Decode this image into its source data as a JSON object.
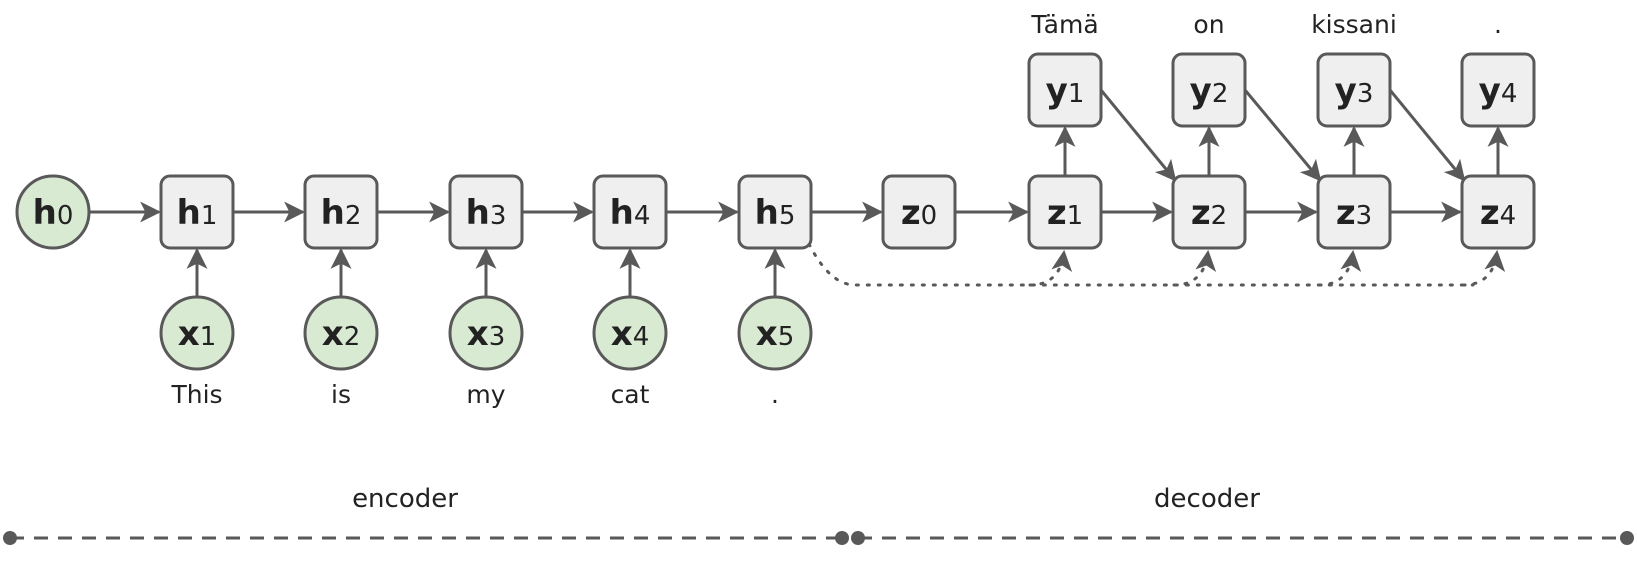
{
  "colors": {
    "stroke": "#595959",
    "box_fill": "#efefef",
    "circle_fill": "#d9ead3",
    "text": "#222222"
  },
  "encoder": {
    "initial_state": {
      "symbol": "h",
      "index": "0"
    },
    "states": [
      {
        "symbol": "h",
        "index": "1"
      },
      {
        "symbol": "h",
        "index": "2"
      },
      {
        "symbol": "h",
        "index": "3"
      },
      {
        "symbol": "h",
        "index": "4"
      },
      {
        "symbol": "h",
        "index": "5"
      }
    ],
    "inputs": [
      {
        "symbol": "x",
        "index": "1",
        "word": "This"
      },
      {
        "symbol": "x",
        "index": "2",
        "word": "is"
      },
      {
        "symbol": "x",
        "index": "3",
        "word": "my"
      },
      {
        "symbol": "x",
        "index": "4",
        "word": "cat"
      },
      {
        "symbol": "x",
        "index": "5",
        "word": "."
      }
    ]
  },
  "decoder": {
    "initial_state": {
      "symbol": "z",
      "index": "0"
    },
    "states": [
      {
        "symbol": "z",
        "index": "1"
      },
      {
        "symbol": "z",
        "index": "2"
      },
      {
        "symbol": "z",
        "index": "3"
      },
      {
        "symbol": "z",
        "index": "4"
      }
    ],
    "outputs": [
      {
        "symbol": "y",
        "index": "1",
        "word": "Tämä"
      },
      {
        "symbol": "y",
        "index": "2",
        "word": "on"
      },
      {
        "symbol": "y",
        "index": "3",
        "word": "kissani"
      },
      {
        "symbol": "y",
        "index": "4",
        "word": "."
      }
    ]
  },
  "sections": {
    "encoder_label": "encoder",
    "decoder_label": "decoder"
  }
}
